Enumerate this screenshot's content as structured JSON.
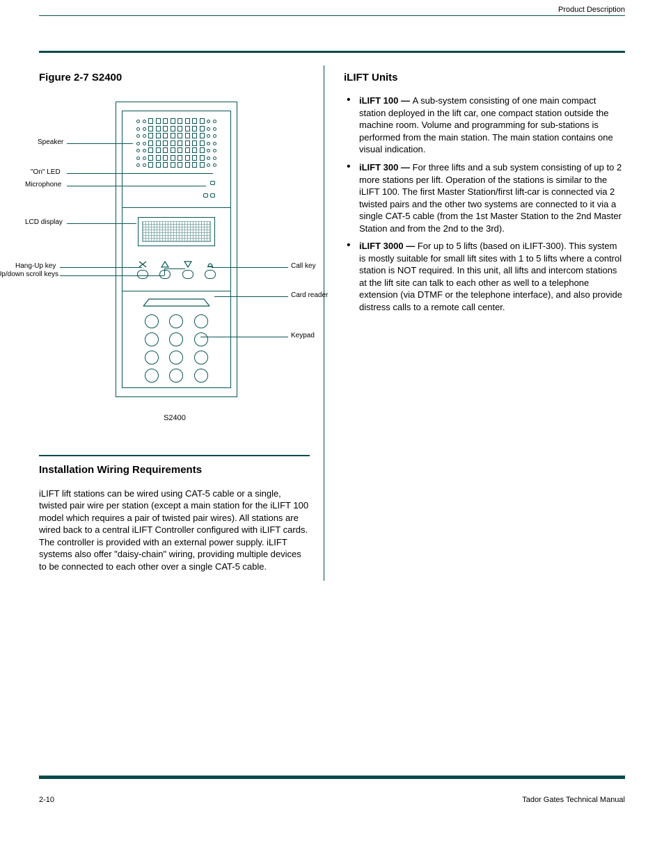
{
  "running_title": "Product Description",
  "page": {
    "top_rule_color": "#0a4a4a",
    "section_rule_color": "#0a4a4a"
  },
  "left": {
    "figure_title": "Figure 2-7 S2400",
    "caption": "S2400",
    "labels": {
      "speaker": "Speaker",
      "on_led": "\"On\" LED",
      "microphone": "Microphone",
      "lcd": "LCD display",
      "hangup": "Hang-Up key",
      "scroll": "Up/down scroll keys",
      "call": "Call key",
      "card": "Card reader",
      "keypad": "Keypad"
    },
    "section2_title": "Installation Wiring Requirements",
    "section2_body": "iLIFT lift stations can be wired using CAT-5 cable or a single, twisted pair wire per station (except a main station for the iLIFT 100 model which requires a pair of twisted pair wires). All stations are wired back to a central iLIFT Controller configured with iLIFT cards. The controller is provided with an external power supply. iLIFT systems also offer \"daisy-chain\" wiring, providing multiple devices to be connected to each other over a single CAT-5 cable."
  },
  "right": {
    "section_title": "iLIFT Units",
    "bullets": [
      {
        "lead": "iLIFT 100 — ",
        "body": "A sub-system consisting of one main compact station deployed in the lift car, one compact station outside the machine room. Volume and programming for sub-stations is performed from the main station. The main station contains one visual indication."
      },
      {
        "lead": "iLIFT 300 — ",
        "body": "For three lifts and a sub system consisting of up to 2 more stations per lift. Operation of the stations is similar to the iLIFT 100. The first Master Station/first lift-car is connected via 2 twisted pairs and the other two systems are connected to it via a single CAT-5 cable (from the 1st Master Station to the 2nd Master Station and from the 2nd to the 3rd)."
      },
      {
        "lead": "iLIFT 3000 — ",
        "body": "For up to 5 lifts (based on iLIFT-300). This system is mostly suitable for small lift sites with 1 to 5 lifts where a control station is NOT required. In this unit, all lifts and intercom stations at the lift site can talk to each other as well to a telephone extension (via DTMF or the telephone interface), and also provide distress calls to a remote call center."
      }
    ]
  },
  "footer": {
    "page_number": "2-10",
    "doc_name": "Tador Gates Technical Manual"
  },
  "diagram": {
    "outline_color": "#0a5555",
    "speaker_rows": 7,
    "speaker_middle_rects": 8,
    "keypad_keys": 12
  }
}
